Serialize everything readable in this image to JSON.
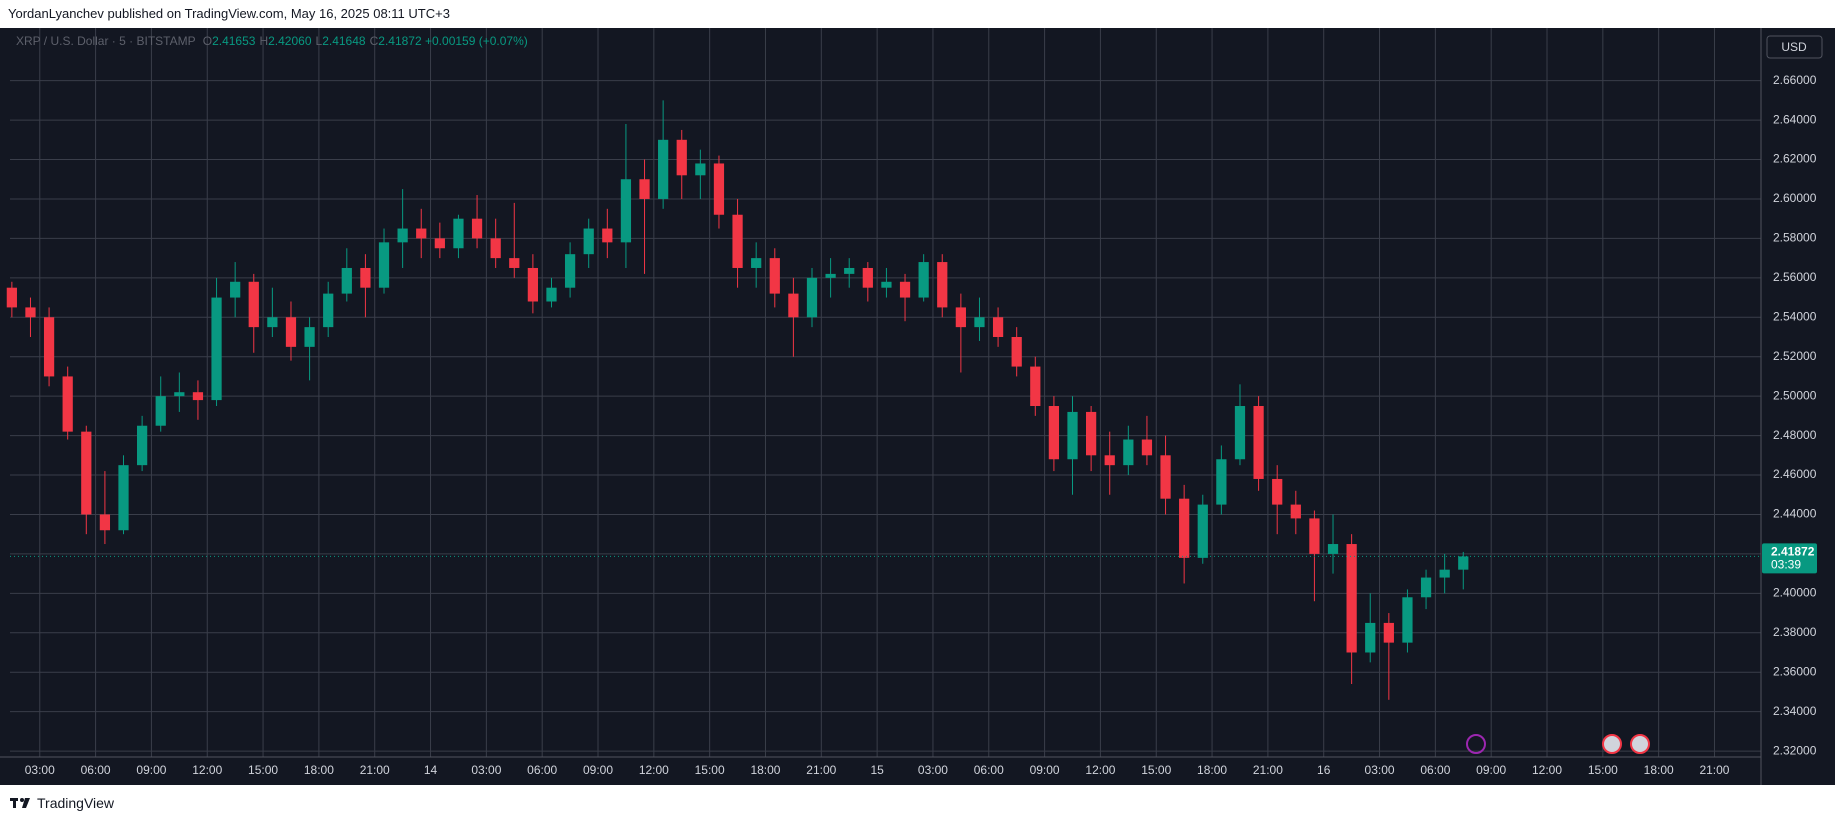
{
  "header": {
    "publisher": "YordanLyanchev published on TradingView.com, May 16, 2025 08:11 UTC+3"
  },
  "footer": {
    "brand": "TradingView"
  },
  "chart_data": {
    "type": "candlestick",
    "symbol": "XRP / U.S. Dollar · 5 · BITSTAMP",
    "ohlc_readout": [
      {
        "label": "O",
        "value": "2.41653"
      },
      {
        "label": "H",
        "value": "2.42060"
      },
      {
        "label": "L",
        "value": "2.41648"
      },
      {
        "label": "C",
        "value": "2.41872"
      }
    ],
    "change": "+0.00159 (+0.07%)",
    "currency": "USD",
    "last_price_label": "2.41872",
    "countdown": "03:39",
    "up_color": "#089981",
    "down_color": "#f23645",
    "grid": true,
    "xlim": [
      0.4,
      94.5
    ],
    "ylim": [
      2.317,
      2.6867
    ],
    "yticks": [
      {
        "value": 2.32,
        "label": "2.32000"
      },
      {
        "value": 2.34,
        "label": "2.34000"
      },
      {
        "value": 2.36,
        "label": "2.36000"
      },
      {
        "value": 2.38,
        "label": "2.38000"
      },
      {
        "value": 2.4,
        "label": "2.40000"
      },
      {
        "value": 2.42,
        "label": "2.42000"
      },
      {
        "value": 2.44,
        "label": "2.44000"
      },
      {
        "value": 2.46,
        "label": "2.46000"
      },
      {
        "value": 2.48,
        "label": "2.48000"
      },
      {
        "value": 2.5,
        "label": "2.50000"
      },
      {
        "value": 2.52,
        "label": "2.52000"
      },
      {
        "value": 2.54,
        "label": "2.54000"
      },
      {
        "value": 2.56,
        "label": "2.56000"
      },
      {
        "value": 2.58,
        "label": "2.58000"
      },
      {
        "value": 2.6,
        "label": "2.60000"
      },
      {
        "value": 2.62,
        "label": "2.62000"
      },
      {
        "value": 2.64,
        "label": "2.64000"
      },
      {
        "value": 2.66,
        "label": "2.66000"
      }
    ],
    "xticks": [
      {
        "value": 2,
        "label": "03:00"
      },
      {
        "value": 5,
        "label": "06:00"
      },
      {
        "value": 8,
        "label": "09:00"
      },
      {
        "value": 11,
        "label": "12:00"
      },
      {
        "value": 14,
        "label": "15:00"
      },
      {
        "value": 17,
        "label": "18:00"
      },
      {
        "value": 20,
        "label": "21:00"
      },
      {
        "value": 23,
        "label": "14"
      },
      {
        "value": 26,
        "label": "03:00"
      },
      {
        "value": 29,
        "label": "06:00"
      },
      {
        "value": 32,
        "label": "09:00"
      },
      {
        "value": 35,
        "label": "12:00"
      },
      {
        "value": 38,
        "label": "15:00"
      },
      {
        "value": 41,
        "label": "18:00"
      },
      {
        "value": 44,
        "label": "21:00"
      },
      {
        "value": 47,
        "label": "15"
      },
      {
        "value": 50,
        "label": "03:00"
      },
      {
        "value": 53,
        "label": "06:00"
      },
      {
        "value": 56,
        "label": "09:00"
      },
      {
        "value": 59,
        "label": "12:00"
      },
      {
        "value": 62,
        "label": "15:00"
      },
      {
        "value": 65,
        "label": "18:00"
      },
      {
        "value": 68,
        "label": "21:00"
      },
      {
        "value": 71,
        "label": "16"
      },
      {
        "value": 74,
        "label": "03:00"
      },
      {
        "value": 77,
        "label": "06:00"
      },
      {
        "value": 80,
        "label": "09:00"
      },
      {
        "value": 83,
        "label": "12:00"
      },
      {
        "value": 86,
        "label": "15:00"
      },
      {
        "value": 89,
        "label": "18:00"
      },
      {
        "value": 92,
        "label": "21:00"
      }
    ],
    "open": [
      2.555,
      2.545,
      2.54,
      2.51,
      2.482,
      2.44,
      2.432,
      2.465,
      2.485,
      2.5,
      2.502,
      2.498,
      2.55,
      2.558,
      2.535,
      2.54,
      2.525,
      2.535,
      2.552,
      2.565,
      2.555,
      2.578,
      2.585,
      2.58,
      2.575,
      2.59,
      2.58,
      2.57,
      2.565,
      2.548,
      2.555,
      2.572,
      2.585,
      2.578,
      2.61,
      2.6,
      2.63,
      2.612,
      2.618,
      2.592,
      2.565,
      2.57,
      2.552,
      2.54,
      2.56,
      2.562,
      2.565,
      2.555,
      2.558,
      2.55,
      2.568,
      2.545,
      2.535,
      2.54,
      2.53,
      2.515,
      2.495,
      2.468,
      2.492,
      2.47,
      2.465,
      2.478,
      2.47,
      2.448,
      2.418,
      2.445,
      2.468,
      2.495,
      2.458,
      2.445,
      2.438,
      2.42,
      2.425,
      2.37,
      2.385,
      2.375,
      2.398,
      2.408,
      2.412
    ],
    "high": [
      2.558,
      2.55,
      2.545,
      2.515,
      2.485,
      2.462,
      2.47,
      2.49,
      2.51,
      2.512,
      2.508,
      2.56,
      2.568,
      2.562,
      2.555,
      2.548,
      2.54,
      2.558,
      2.575,
      2.572,
      2.585,
      2.605,
      2.595,
      2.588,
      2.592,
      2.602,
      2.59,
      2.598,
      2.572,
      2.56,
      2.578,
      2.59,
      2.595,
      2.638,
      2.62,
      2.65,
      2.635,
      2.625,
      2.622,
      2.6,
      2.578,
      2.575,
      2.56,
      2.565,
      2.57,
      2.57,
      2.568,
      2.565,
      2.562,
      2.572,
      2.572,
      2.552,
      2.55,
      2.545,
      2.535,
      2.52,
      2.5,
      2.5,
      2.495,
      2.482,
      2.485,
      2.49,
      2.48,
      2.455,
      2.45,
      2.475,
      2.506,
      2.5,
      2.465,
      2.452,
      2.442,
      2.44,
      2.43,
      2.4,
      2.39,
      2.402,
      2.412,
      2.42,
      2.421
    ],
    "low": [
      2.54,
      2.53,
      2.505,
      2.478,
      2.43,
      2.425,
      2.43,
      2.462,
      2.482,
      2.492,
      2.488,
      2.495,
      2.54,
      2.522,
      2.53,
      2.518,
      2.508,
      2.53,
      2.548,
      2.54,
      2.552,
      2.565,
      2.57,
      2.57,
      2.57,
      2.575,
      2.565,
      2.56,
      2.542,
      2.545,
      2.55,
      2.565,
      2.57,
      2.565,
      2.562,
      2.595,
      2.6,
      2.6,
      2.585,
      2.555,
      2.555,
      2.545,
      2.52,
      2.535,
      2.55,
      2.555,
      2.548,
      2.55,
      2.538,
      2.548,
      2.54,
      2.512,
      2.528,
      2.525,
      2.51,
      2.49,
      2.462,
      2.45,
      2.462,
      2.45,
      2.46,
      2.465,
      2.44,
      2.405,
      2.415,
      2.44,
      2.465,
      2.452,
      2.43,
      2.43,
      2.396,
      2.41,
      2.354,
      2.365,
      2.346,
      2.37,
      2.392,
      2.4,
      2.402
    ],
    "close": [
      2.545,
      2.54,
      2.51,
      2.482,
      2.44,
      2.432,
      2.465,
      2.485,
      2.5,
      2.502,
      2.498,
      2.55,
      2.558,
      2.535,
      2.54,
      2.525,
      2.535,
      2.552,
      2.565,
      2.555,
      2.578,
      2.585,
      2.58,
      2.575,
      2.59,
      2.58,
      2.57,
      2.565,
      2.548,
      2.555,
      2.572,
      2.585,
      2.578,
      2.61,
      2.6,
      2.63,
      2.612,
      2.618,
      2.592,
      2.565,
      2.57,
      2.552,
      2.54,
      2.56,
      2.562,
      2.565,
      2.555,
      2.558,
      2.55,
      2.568,
      2.545,
      2.535,
      2.54,
      2.53,
      2.515,
      2.495,
      2.468,
      2.492,
      2.47,
      2.465,
      2.478,
      2.47,
      2.448,
      2.418,
      2.445,
      2.468,
      2.495,
      2.458,
      2.445,
      2.438,
      2.42,
      2.425,
      2.37,
      2.385,
      2.375,
      2.398,
      2.408,
      2.412,
      2.41872
    ]
  }
}
